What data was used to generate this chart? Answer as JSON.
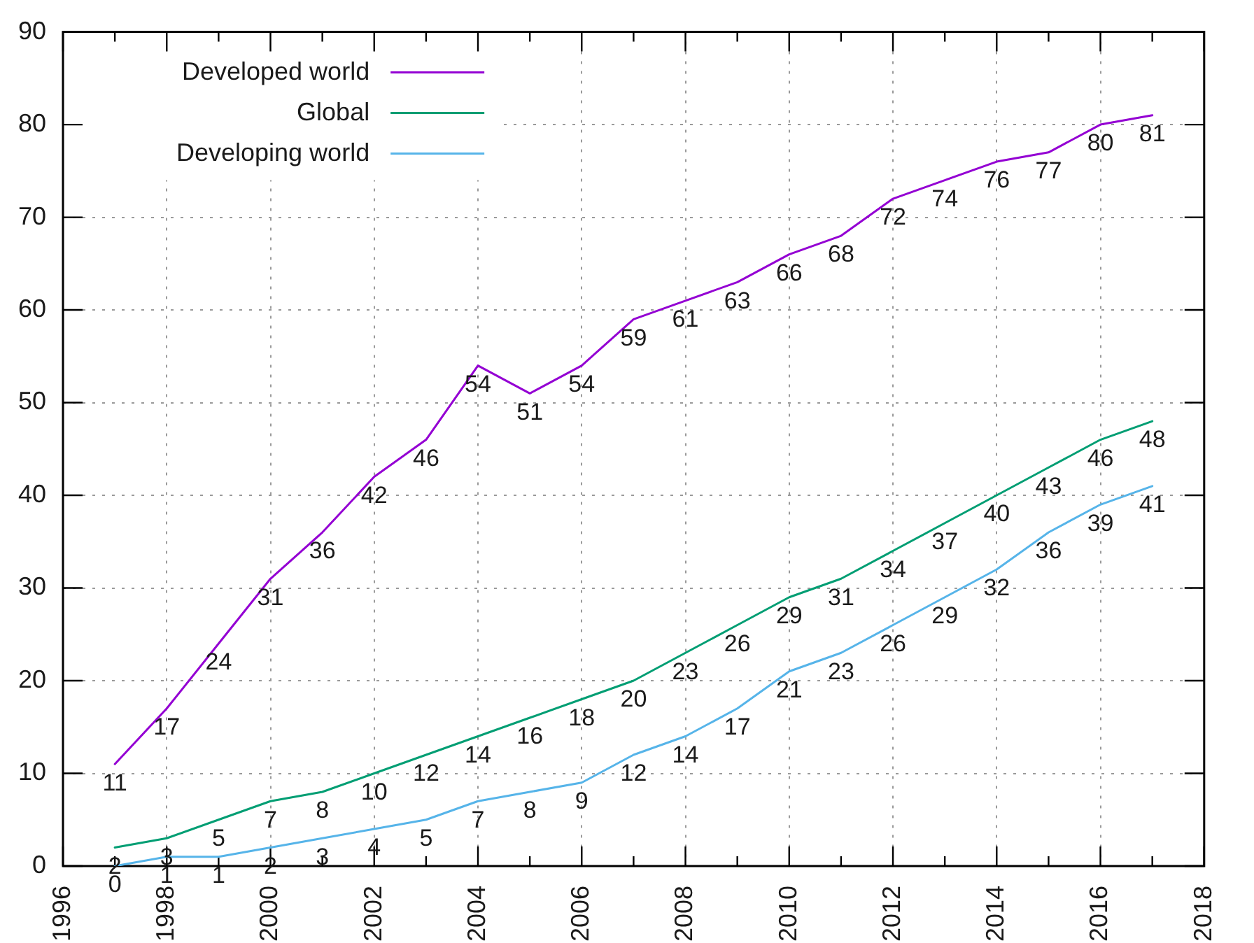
{
  "chart_data": {
    "type": "line",
    "x": [
      1997,
      1998,
      1999,
      2000,
      2001,
      2002,
      2003,
      2004,
      2005,
      2006,
      2007,
      2008,
      2009,
      2010,
      2011,
      2012,
      2013,
      2014,
      2015,
      2016,
      2017
    ],
    "series": [
      {
        "name": "Developed world",
        "color": "#9400d3",
        "values": [
          11,
          17,
          24,
          31,
          36,
          42,
          46,
          54,
          51,
          54,
          59,
          61,
          63,
          66,
          68,
          72,
          74,
          76,
          77,
          80,
          81
        ]
      },
      {
        "name": "Global",
        "color": "#009e73",
        "values": [
          2,
          3,
          5,
          7,
          8,
          10,
          12,
          14,
          16,
          18,
          20,
          23,
          26,
          29,
          31,
          34,
          37,
          40,
          43,
          46,
          48
        ]
      },
      {
        "name": "Developing world",
        "color": "#56b4e9",
        "values": [
          0,
          1,
          1,
          2,
          3,
          4,
          5,
          7,
          8,
          9,
          12,
          14,
          17,
          21,
          23,
          26,
          29,
          32,
          36,
          39,
          41
        ]
      }
    ],
    "xlim": [
      1996,
      2018
    ],
    "xticks": [
      1996,
      {
        "value": 1997,
        "label": null
      },
      1998,
      {
        "value": 1999,
        "label": null
      },
      2000,
      {
        "value": 2001,
        "label": null
      },
      2002,
      {
        "value": 2003,
        "label": null
      },
      2004,
      {
        "value": 2005,
        "label": null
      },
      2006,
      {
        "value": 2007,
        "label": null
      },
      2008,
      {
        "value": 2009,
        "label": null
      },
      2010,
      {
        "value": 2011,
        "label": null
      },
      2012,
      {
        "value": 2013,
        "label": null
      },
      2014,
      {
        "value": 2015,
        "label": null
      },
      2016,
      {
        "value": 2017,
        "label": null
      },
      2018
    ],
    "ylim": [
      0,
      90
    ],
    "yticks": [
      0,
      10,
      20,
      30,
      40,
      50,
      60,
      70,
      80,
      90
    ],
    "grid": true,
    "legend": "top left",
    "data_labels": true
  }
}
